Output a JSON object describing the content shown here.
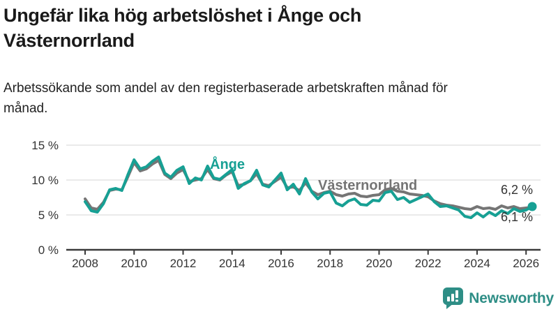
{
  "header": {
    "title": "Ungefär lika hög arbetslöshet i Ånge och Västernorrland",
    "subtitle": "Arbetssökande som andel av den registerbaserade arbetskraften månad för månad."
  },
  "chart_data": {
    "type": "line",
    "title": "Ungefär lika hög arbetslöshet i Ånge och Västernorrland",
    "xlabel": "",
    "ylabel": "",
    "ylim": [
      0,
      15
    ],
    "x_range": [
      2008,
      2026.25
    ],
    "grid": "horizontal",
    "legend_position": "inline-labels",
    "y_ticks": [
      {
        "value": 15,
        "label": "15 %"
      },
      {
        "value": 10,
        "label": "10 %"
      },
      {
        "value": 5,
        "label": "5 %"
      },
      {
        "value": 0,
        "label": "0 %"
      }
    ],
    "x_ticks": [
      {
        "value": 2008,
        "label": "2008"
      },
      {
        "value": 2010,
        "label": "2010"
      },
      {
        "value": 2012,
        "label": "2012"
      },
      {
        "value": 2014,
        "label": "2014"
      },
      {
        "value": 2016,
        "label": "2016"
      },
      {
        "value": 2018,
        "label": "2018"
      },
      {
        "value": 2020,
        "label": "2020"
      },
      {
        "value": 2022,
        "label": "2022"
      },
      {
        "value": 2024,
        "label": "2024"
      },
      {
        "value": 2026,
        "label": "2026"
      }
    ],
    "colors": {
      "accent_teal": "#17a094",
      "comparison_gray": "#757575",
      "axis": "#3a3a3a",
      "gridline": "#e3e3e3"
    },
    "series": [
      {
        "name": "Västernorrland",
        "color": "#757575",
        "end_label": "6,1 %",
        "last_value": 6.1,
        "x_start": 2008,
        "x_step": 0.25,
        "values": [
          7.3,
          6.0,
          5.8,
          6.8,
          8.5,
          8.7,
          8.6,
          10.5,
          12.5,
          11.3,
          11.6,
          12.3,
          12.8,
          10.8,
          10.2,
          11.0,
          11.5,
          9.8,
          10.0,
          10.2,
          11.5,
          10.2,
          10.0,
          10.7,
          11.2,
          9.2,
          9.4,
          9.9,
          10.9,
          9.4,
          9.2,
          9.8,
          10.4,
          8.9,
          9.0,
          8.5,
          9.6,
          8.4,
          7.9,
          8.2,
          8.4,
          7.9,
          7.7,
          8.0,
          8.1,
          7.7,
          7.6,
          7.8,
          7.9,
          8.6,
          8.8,
          8.4,
          8.3,
          8.0,
          7.9,
          7.8,
          7.6,
          7.0,
          6.6,
          6.4,
          6.3,
          6.1,
          5.9,
          5.8,
          6.2,
          5.9,
          6.0,
          5.8,
          6.3,
          6.0,
          6.2,
          5.9,
          6.0,
          6.1
        ]
      },
      {
        "name": "Ånge",
        "color": "#17a094",
        "end_label": "6,2 %",
        "last_value": 6.2,
        "marker_last": true,
        "x_start": 2008,
        "x_step": 0.25,
        "values": [
          6.9,
          5.6,
          5.4,
          6.6,
          8.6,
          8.8,
          8.5,
          10.8,
          12.9,
          11.6,
          11.9,
          12.7,
          13.3,
          11.0,
          10.4,
          11.4,
          11.9,
          9.5,
          10.3,
          10.0,
          12.0,
          10.3,
          10.1,
          10.8,
          11.5,
          8.8,
          9.5,
          9.9,
          11.4,
          9.3,
          9.0,
          10.0,
          11.0,
          8.6,
          9.4,
          8.0,
          10.2,
          8.3,
          7.3,
          8.1,
          8.3,
          6.7,
          6.3,
          7.0,
          7.3,
          6.5,
          6.4,
          7.1,
          7.0,
          8.2,
          8.4,
          7.2,
          7.5,
          6.8,
          7.2,
          7.6,
          8.0,
          6.9,
          6.2,
          6.3,
          6.0,
          5.7,
          4.8,
          4.6,
          5.3,
          4.7,
          5.4,
          4.9,
          5.6,
          5.2,
          5.9,
          5.5,
          5.7,
          6.2
        ]
      }
    ]
  },
  "footer": {
    "brand": "Newsworthy"
  }
}
